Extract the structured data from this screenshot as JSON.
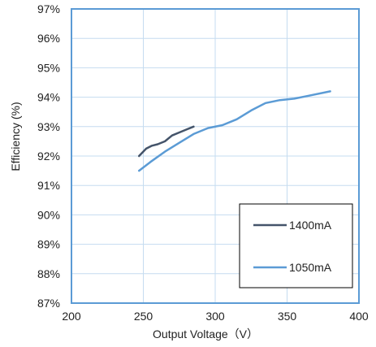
{
  "chart_data": {
    "type": "line",
    "title": "",
    "xlabel": "Output Voltage（V）",
    "ylabel": "Efficiency (%)",
    "xlim": [
      200,
      400
    ],
    "ylim": [
      87,
      97
    ],
    "x_ticks": [
      200,
      250,
      300,
      350,
      400
    ],
    "x_tick_labels": [
      "200",
      "250",
      "300",
      "350",
      "400"
    ],
    "y_ticks": [
      87,
      88,
      89,
      90,
      91,
      92,
      93,
      94,
      95,
      96,
      97
    ],
    "y_tick_labels": [
      "87%",
      "88%",
      "89%",
      "90%",
      "91%",
      "92%",
      "93%",
      "94%",
      "95%",
      "96%",
      "97%"
    ],
    "grid": true,
    "legend_position": "bottom-right",
    "series": [
      {
        "name": "1400mA",
        "color": "#44546a",
        "points": [
          [
            247,
            92.0
          ],
          [
            252,
            92.25
          ],
          [
            256,
            92.35
          ],
          [
            260,
            92.4
          ],
          [
            265,
            92.5
          ],
          [
            270,
            92.7
          ],
          [
            275,
            92.8
          ],
          [
            280,
            92.9
          ],
          [
            285,
            93.0
          ]
        ]
      },
      {
        "name": "1050mA",
        "color": "#5b9bd5",
        "points": [
          [
            247,
            91.5
          ],
          [
            255,
            91.8
          ],
          [
            265,
            92.15
          ],
          [
            275,
            92.45
          ],
          [
            285,
            92.75
          ],
          [
            295,
            92.95
          ],
          [
            305,
            93.05
          ],
          [
            315,
            93.25
          ],
          [
            325,
            93.55
          ],
          [
            335,
            93.8
          ],
          [
            345,
            93.9
          ],
          [
            355,
            93.95
          ],
          [
            365,
            94.05
          ],
          [
            380,
            94.2
          ]
        ]
      }
    ]
  }
}
